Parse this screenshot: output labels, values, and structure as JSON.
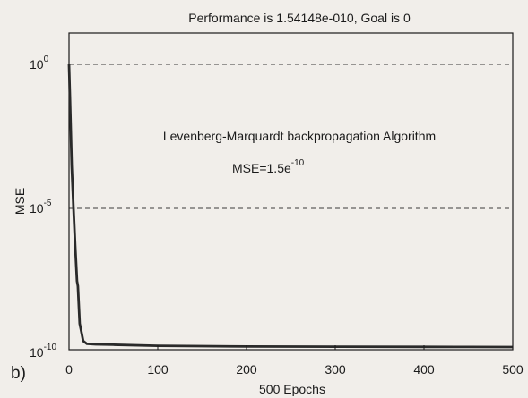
{
  "chart_data": {
    "type": "line",
    "title": "Performance is 1.54148e-010, Goal is 0",
    "xlabel": "500 Epochs",
    "ylabel": "MSE",
    "xlim": [
      0,
      500
    ],
    "ylim": [
      1e-10,
      10
    ],
    "yscale": "log",
    "xticks": [
      0,
      100,
      200,
      300,
      400,
      500
    ],
    "yticks": [
      {
        "value": 1,
        "base": "10",
        "exp": "0"
      },
      {
        "value": 1e-05,
        "base": "10",
        "exp": "-5"
      },
      {
        "value": 1e-10,
        "base": "10",
        "exp": "-10"
      }
    ],
    "grid": "dashed horizontal at decade ticks",
    "annotation": "Levenberg-Marquardt backpropagation Algorithm",
    "mse_text": {
      "base": "MSE=1.5e",
      "exp": "-10"
    },
    "panel_label": "b)",
    "line_color": "#2a2a2a",
    "series": [
      {
        "x": [
          0,
          1,
          2,
          3,
          5,
          7,
          9,
          10,
          12,
          14,
          16,
          20,
          30,
          50,
          100,
          150,
          200,
          300,
          400,
          450,
          500
        ],
        "y": [
          1,
          0.08,
          0.005,
          0.0003,
          1e-05,
          5e-07,
          3e-08,
          2e-08,
          1e-09,
          5e-10,
          2.5e-10,
          2e-10,
          1.9e-10,
          1.85e-10,
          1.7e-10,
          1.65e-10,
          1.6e-10,
          1.58e-10,
          1.56e-10,
          1.55e-10,
          1.54e-10
        ]
      }
    ]
  }
}
